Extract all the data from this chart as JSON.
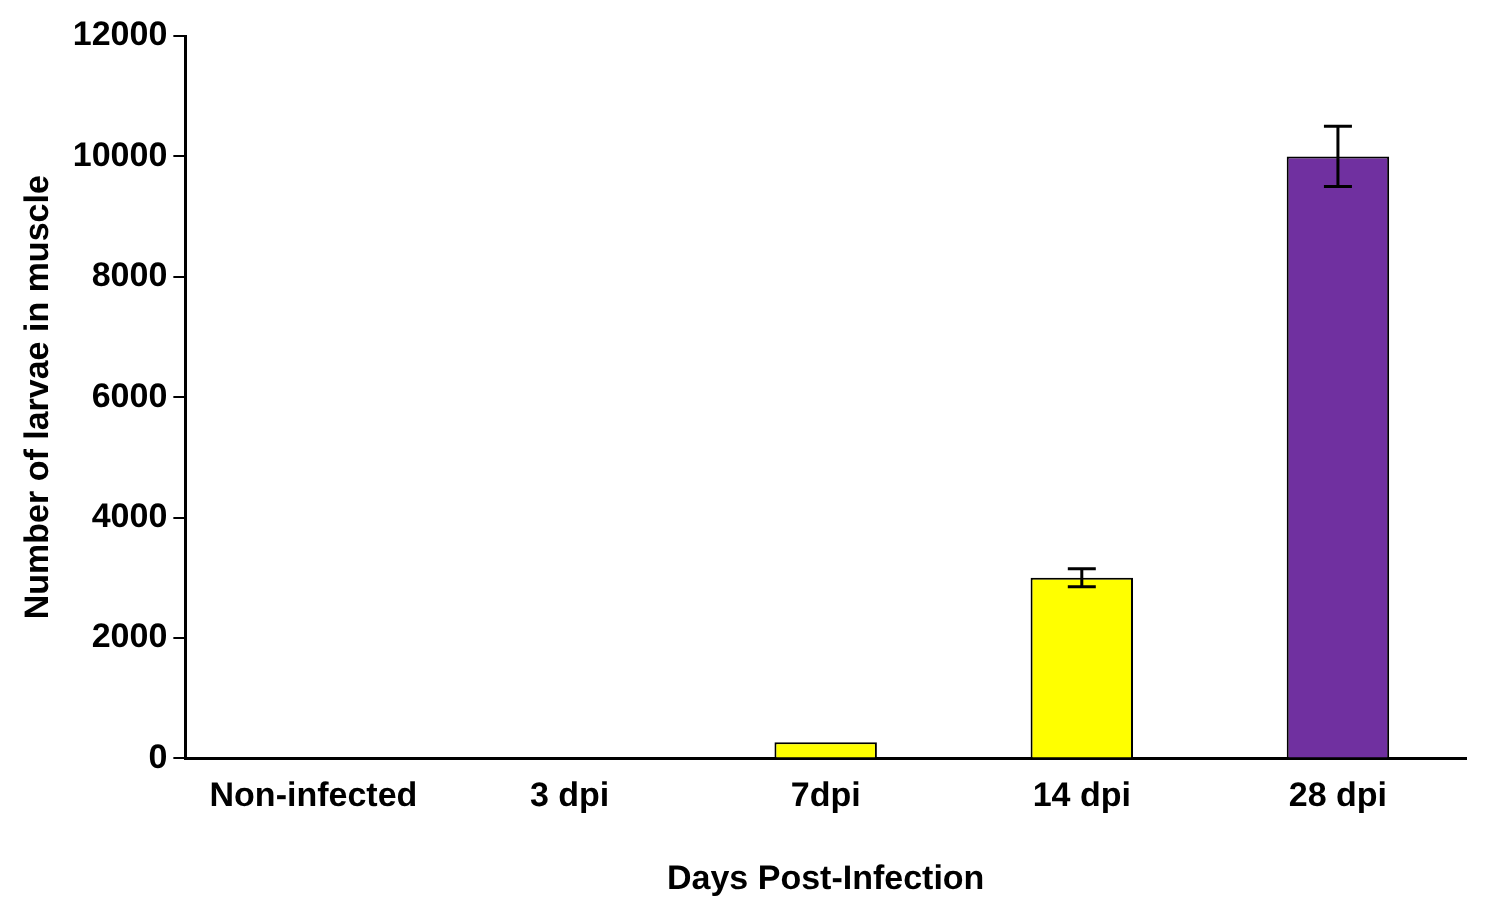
{
  "chart_data": {
    "type": "bar",
    "xlabel": "Days Post-Infection",
    "ylabel": "Number of larvae in muscle",
    "categories": [
      "Non-infected",
      "3 dpi",
      "7dpi",
      "14 dpi",
      "28 dpi"
    ],
    "values": [
      0,
      0,
      270,
      3000,
      10000
    ],
    "colors": [
      "#ffff00",
      "#ffff00",
      "#ffff00",
      "#ffff00",
      "#7030a0"
    ],
    "errors": [
      null,
      null,
      null,
      150,
      500
    ],
    "ylim": [
      0,
      12000
    ],
    "yticks": [
      0,
      2000,
      4000,
      6000,
      8000,
      10000,
      12000
    ],
    "grid": false,
    "legend": false
  }
}
